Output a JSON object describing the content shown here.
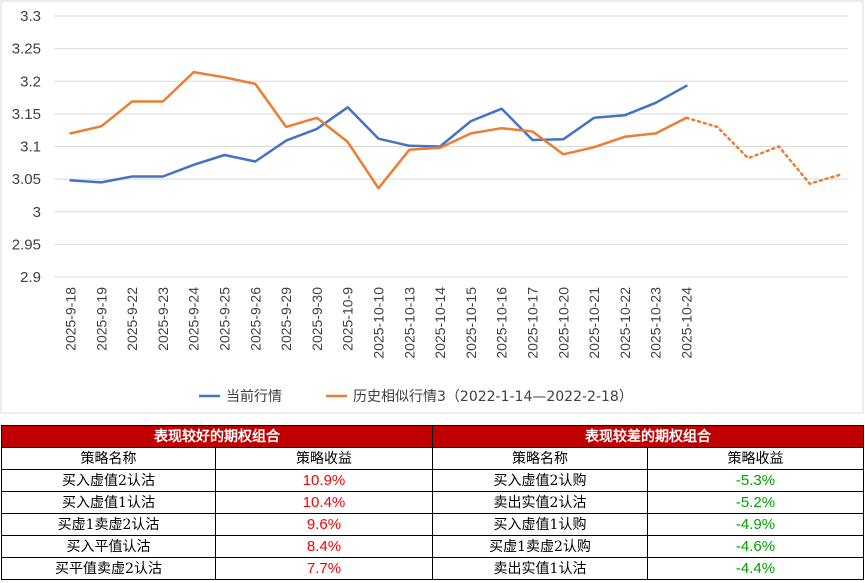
{
  "chart_data": {
    "type": "line",
    "ylim": [
      2.9,
      3.3
    ],
    "yticks": [
      "3.3",
      "3.25",
      "3.2",
      "3.15",
      "3.1",
      "3.05",
      "3",
      "2.95",
      "2.9"
    ],
    "grid": true,
    "legend_position": "bottom",
    "categories": [
      "2025-9-18",
      "2025-9-19",
      "2025-9-22",
      "2025-9-23",
      "2025-9-24",
      "2025-9-25",
      "2025-9-26",
      "2025-9-29",
      "2025-9-30",
      "2025-10-9",
      "2025-10-10",
      "2025-10-13",
      "2025-10-14",
      "2025-10-15",
      "2025-10-16",
      "2025-10-17",
      "2025-10-20",
      "2025-10-21",
      "2025-10-22",
      "2025-10-23",
      "2025-10-24"
    ],
    "extra_points": 5,
    "series": [
      {
        "name": "当前行情",
        "color": "#4472c4",
        "values": [
          3.048,
          3.045,
          3.054,
          3.054,
          3.072,
          3.087,
          3.077,
          3.109,
          3.127,
          3.16,
          3.112,
          3.101,
          3.1,
          3.139,
          3.158,
          3.11,
          3.111,
          3.144,
          3.148,
          3.167,
          3.193
        ]
      },
      {
        "name": "历史相似行情3（2022-1-14—2022-2-18）",
        "color": "#ed7d31",
        "values": [
          3.12,
          3.131,
          3.169,
          3.169,
          3.214,
          3.206,
          3.196,
          3.13,
          3.144,
          3.107,
          3.036,
          3.095,
          3.098,
          3.12,
          3.128,
          3.123,
          3.088,
          3.099,
          3.115,
          3.12,
          3.144
        ],
        "projection": [
          3.144,
          3.13,
          3.082,
          3.1,
          3.043,
          3.057
        ]
      }
    ]
  },
  "tables": {
    "good": {
      "title": "表现较好的期权组合",
      "headers": [
        "策略名称",
        "策略收益"
      ],
      "rows": [
        [
          "买入虚值2认沽",
          "10.9%"
        ],
        [
          "买入虚值1认沽",
          "10.4%"
        ],
        [
          "买虚1卖虚2认沽",
          "9.6%"
        ],
        [
          "买入平值认沽",
          "8.4%"
        ],
        [
          "买平值卖虚2认沽",
          "7.7%"
        ]
      ],
      "value_color": "#ff0000"
    },
    "bad": {
      "title": "表现较差的期权组合",
      "headers": [
        "策略名称",
        "策略收益"
      ],
      "rows": [
        [
          "买入虚值2认购",
          "-5.3%"
        ],
        [
          "卖出实值2认沽",
          "-5.2%"
        ],
        [
          "买入虚值1认购",
          "-4.9%"
        ],
        [
          "买虚1卖虚2认购",
          "-4.6%"
        ],
        [
          "卖出实值1认沽",
          "-4.4%"
        ]
      ],
      "value_color": "#00a000"
    }
  }
}
